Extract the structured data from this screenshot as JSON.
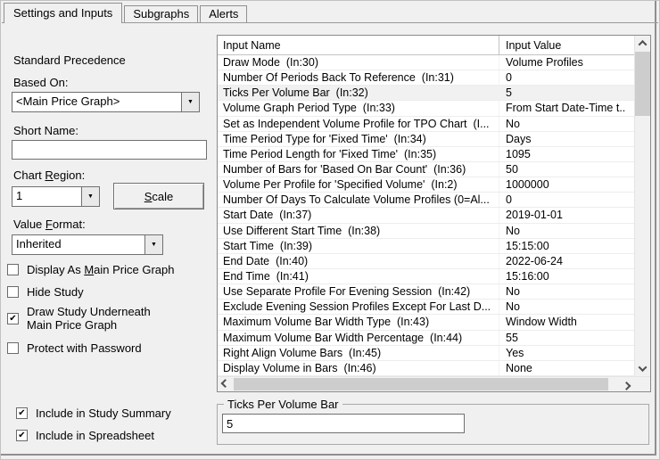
{
  "tabs": [
    {
      "label": "Settings and Inputs"
    },
    {
      "label": "Subgraphs"
    },
    {
      "label": "Alerts"
    }
  ],
  "left_panel": {
    "precedence_label": "Standard Precedence",
    "based_on": {
      "label": "Based On:",
      "value": "<Main Price Graph>"
    },
    "short_name": {
      "label": "Short Name:",
      "value": ""
    },
    "chart_region": {
      "label_pre": "Chart ",
      "label_u": "R",
      "label_post": "egion:",
      "value": "1"
    },
    "scale_button": {
      "label_u": "S",
      "label_post": "cale"
    },
    "value_format": {
      "label_pre": "Value ",
      "label_u": "F",
      "label_post": "ormat:",
      "value": "Inherited"
    },
    "checkboxes": [
      {
        "pre": "Display As ",
        "u": "M",
        "post": "ain Price Graph",
        "checked": false
      },
      {
        "label": "Hide Study",
        "checked": false
      },
      {
        "line1": "Draw Study Underneath",
        "line2": "Main Price Graph",
        "checked": true
      },
      {
        "label": "Protect with Password",
        "checked": false
      },
      {
        "label": "Include in Study Summary",
        "checked": true
      },
      {
        "label": "Include in Spreadsheet",
        "checked": true
      }
    ]
  },
  "table": {
    "headers": [
      "Input Name",
      "Input Value"
    ],
    "selected_index": 2,
    "rows": [
      {
        "name": "Draw Mode  (In:30)",
        "value": "Volume Profiles"
      },
      {
        "name": "Number Of Periods Back To Reference  (In:31)",
        "value": "0"
      },
      {
        "name": "Ticks Per Volume Bar  (In:32)",
        "value": "5"
      },
      {
        "name": "Volume Graph Period Type  (In:33)",
        "value": "From Start Date-Time t.."
      },
      {
        "name": "Set as Independent Volume Profile for TPO Chart  (I...",
        "value": "No"
      },
      {
        "name": "Time Period Type for 'Fixed Time'  (In:34)",
        "value": "Days"
      },
      {
        "name": "Time Period Length for 'Fixed Time'  (In:35)",
        "value": "1095"
      },
      {
        "name": "Number of Bars for 'Based On Bar Count'  (In:36)",
        "value": "50"
      },
      {
        "name": "Volume Per Profile for 'Specified Volume'  (In:2)",
        "value": "1000000"
      },
      {
        "name": "Number Of Days To Calculate Volume Profiles (0=Al...",
        "value": "0"
      },
      {
        "name": "Start Date  (In:37)",
        "value": "2019-01-01"
      },
      {
        "name": "Use Different Start Time  (In:38)",
        "value": "No"
      },
      {
        "name": "Start Time  (In:39)",
        "value": "15:15:00"
      },
      {
        "name": "End Date  (In:40)",
        "value": "2022-06-24"
      },
      {
        "name": "End Time  (In:41)",
        "value": "15:16:00"
      },
      {
        "name": "Use Separate Profile For Evening Session  (In:42)",
        "value": "No"
      },
      {
        "name": "Exclude Evening Session Profiles Except For Last D...",
        "value": "No"
      },
      {
        "name": "Maximum Volume Bar Width Type  (In:43)",
        "value": "Window Width"
      },
      {
        "name": "Maximum Volume Bar Width Percentage  (In:44)",
        "value": "55"
      },
      {
        "name": "Right Align Volume Bars  (In:45)",
        "value": "Yes"
      },
      {
        "name": "Display Volume in Bars  (In:46)",
        "value": "None"
      }
    ]
  },
  "group_box": {
    "title": "Ticks Per Volume Bar",
    "value": "5"
  },
  "glyphs": {
    "check": "✔",
    "dropdown": "▼"
  },
  "colors": {
    "dialog_bg": "#f0f0f0",
    "border": "#8f8f8f",
    "selected_row": "#f1f1f1",
    "scroll_thumb": "#cdcdcd"
  }
}
